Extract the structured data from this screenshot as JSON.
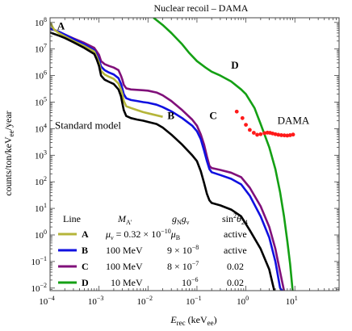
{
  "chart_data": {
    "type": "line",
    "title": "Nuclear recoil – DAMA",
    "xlabel_main": "E",
    "xlabel_sub": "rec",
    "xlabel_unit_pre": " (keV",
    "xlabel_unit_sub": "ee",
    "xlabel_unit_post": ")",
    "ylabel_pre": "counts/ton/keV",
    "ylabel_sub": "ee",
    "ylabel_post": "/year",
    "x_scale": "log",
    "y_scale": "log",
    "xlim": [
      0.0001,
      80
    ],
    "ylim": [
      0.008,
      150000000
    ],
    "grid": false,
    "frame": true,
    "x_ticks": [
      {
        "value": 0.0001,
        "base": "10",
        "exp": "−4"
      },
      {
        "value": 0.001,
        "base": "10",
        "exp": "−3"
      },
      {
        "value": 0.01,
        "base": "10",
        "exp": "−2"
      },
      {
        "value": 0.1,
        "base": "10",
        "exp": "−1"
      },
      {
        "value": 1,
        "base": "10",
        "exp": "0"
      },
      {
        "value": 10,
        "base": "10",
        "exp": "1"
      }
    ],
    "y_ticks": [
      {
        "value": 0.01,
        "base": "10",
        "exp": "−2"
      },
      {
        "value": 0.1,
        "base": "10",
        "exp": "−1"
      },
      {
        "value": 1,
        "base": "10",
        "exp": "0"
      },
      {
        "value": 10,
        "base": "10",
        "exp": "1"
      },
      {
        "value": 100,
        "base": "10",
        "exp": "2"
      },
      {
        "value": 1000,
        "base": "10",
        "exp": "3"
      },
      {
        "value": 10000,
        "base": "10",
        "exp": "4"
      },
      {
        "value": 100000,
        "base": "10",
        "exp": "5"
      },
      {
        "value": 1000000,
        "base": "10",
        "exp": "6"
      },
      {
        "value": 10000000,
        "base": "10",
        "exp": "7"
      },
      {
        "value": 100000000,
        "base": "10",
        "exp": "8"
      }
    ],
    "series": [
      {
        "name": "A",
        "color": "#b5b53a",
        "points": [
          [
            0.0001,
            100000000
          ],
          [
            0.00012,
            55000000
          ],
          [
            0.00015,
            40000000
          ],
          [
            0.0002,
            30000000
          ],
          [
            0.0003,
            20000000
          ],
          [
            0.0005,
            13000000
          ],
          [
            0.0008,
            8000000
          ],
          [
            0.0009,
            5000000
          ],
          [
            0.001,
            3000000
          ],
          [
            0.0011,
            1500000
          ],
          [
            0.0013,
            1100000
          ],
          [
            0.0016,
            900000
          ],
          [
            0.002,
            750000
          ],
          [
            0.0025,
            500000
          ],
          [
            0.0028,
            300000
          ],
          [
            0.003,
            200000
          ],
          [
            0.0032,
            110000
          ],
          [
            0.0036,
            70000
          ],
          [
            0.0045,
            60000
          ],
          [
            0.006,
            50000
          ],
          [
            0.008,
            42000
          ],
          [
            0.01,
            38000
          ],
          [
            0.02,
            28000
          ]
        ]
      },
      {
        "name": "B",
        "color": "#1010e0",
        "points": [
          [
            0.0001,
            60000000
          ],
          [
            0.00015,
            45000000
          ],
          [
            0.0002,
            35000000
          ],
          [
            0.0003,
            24000000
          ],
          [
            0.0005,
            15000000
          ],
          [
            0.0008,
            9000000
          ],
          [
            0.0009,
            6000000
          ],
          [
            0.001,
            4000000
          ],
          [
            0.0011,
            2200000
          ],
          [
            0.0013,
            1600000
          ],
          [
            0.0016,
            1300000
          ],
          [
            0.002,
            1100000
          ],
          [
            0.0025,
            800000
          ],
          [
            0.0028,
            500000
          ],
          [
            0.003,
            320000
          ],
          [
            0.0032,
            200000
          ],
          [
            0.0036,
            140000
          ],
          [
            0.0045,
            120000
          ],
          [
            0.006,
            110000
          ],
          [
            0.008,
            100000
          ],
          [
            0.01,
            95000
          ],
          [
            0.015,
            80000
          ],
          [
            0.02,
            65000
          ],
          [
            0.03,
            45000
          ],
          [
            0.05,
            25000
          ],
          [
            0.08,
            13000
          ],
          [
            0.1,
            8000
          ],
          [
            0.12,
            4000
          ],
          [
            0.14,
            1500
          ],
          [
            0.16,
            600
          ],
          [
            0.18,
            300
          ],
          [
            0.2,
            230
          ],
          [
            0.3,
            180
          ],
          [
            0.5,
            130
          ],
          [
            0.8,
            80
          ],
          [
            1.2,
            30
          ],
          [
            2,
            5
          ],
          [
            3,
            0.8
          ],
          [
            4,
            0.1
          ],
          [
            5,
            0.01
          ],
          [
            5.5,
            0.008
          ]
        ]
      },
      {
        "name": "C",
        "color": "#80107a",
        "points": [
          [
            0.0001,
            60000000
          ],
          [
            0.00015,
            45000000
          ],
          [
            0.0002,
            35000000
          ],
          [
            0.0003,
            25000000
          ],
          [
            0.0005,
            17000000
          ],
          [
            0.0008,
            11000000
          ],
          [
            0.0009,
            8000000
          ],
          [
            0.001,
            6000000
          ],
          [
            0.0011,
            3500000
          ],
          [
            0.0013,
            2700000
          ],
          [
            0.0016,
            2300000
          ],
          [
            0.002,
            2000000
          ],
          [
            0.0025,
            1600000
          ],
          [
            0.0028,
            1000000
          ],
          [
            0.003,
            700000
          ],
          [
            0.0032,
            450000
          ],
          [
            0.0036,
            330000
          ],
          [
            0.0045,
            300000
          ],
          [
            0.006,
            290000
          ],
          [
            0.008,
            280000
          ],
          [
            0.01,
            270000
          ],
          [
            0.015,
            230000
          ],
          [
            0.02,
            180000
          ],
          [
            0.03,
            110000
          ],
          [
            0.05,
            50000
          ],
          [
            0.08,
            22000
          ],
          [
            0.1,
            13000
          ],
          [
            0.12,
            6000
          ],
          [
            0.14,
            2500
          ],
          [
            0.16,
            900
          ],
          [
            0.18,
            400
          ],
          [
            0.2,
            330
          ],
          [
            0.3,
            280
          ],
          [
            0.5,
            220
          ],
          [
            0.8,
            150
          ],
          [
            1.2,
            60
          ],
          [
            2,
            12
          ],
          [
            3,
            2
          ],
          [
            4,
            0.3
          ],
          [
            5,
            0.04
          ],
          [
            6,
            0.008
          ]
        ]
      },
      {
        "name": "D",
        "color": "#14a014",
        "points": [
          [
            0.013,
            150000000
          ],
          [
            0.02,
            80000000
          ],
          [
            0.03,
            40000000
          ],
          [
            0.05,
            15000000
          ],
          [
            0.07,
            7000000
          ],
          [
            0.1,
            3500000
          ],
          [
            0.15,
            2000000
          ],
          [
            0.2,
            1400000
          ],
          [
            0.3,
            1000000
          ],
          [
            0.5,
            600000
          ],
          [
            0.8,
            300000
          ],
          [
            1.0,
            200000
          ],
          [
            1.5,
            60000
          ],
          [
            2,
            15000
          ],
          [
            3,
            2000
          ],
          [
            4,
            300
          ],
          [
            5,
            40
          ],
          [
            6,
            5
          ],
          [
            7,
            0.6
          ],
          [
            8,
            0.08
          ],
          [
            9,
            0.008
          ]
        ]
      },
      {
        "name": "Standard model",
        "color": "#000000",
        "points": [
          [
            0.0001,
            42000000
          ],
          [
            0.00015,
            32000000
          ],
          [
            0.0002,
            26000000
          ],
          [
            0.0003,
            18000000
          ],
          [
            0.0005,
            11000000
          ],
          [
            0.0008,
            6500000
          ],
          [
            0.0009,
            4000000
          ],
          [
            0.001,
            2300000
          ],
          [
            0.0011,
            1000000
          ],
          [
            0.0013,
            700000
          ],
          [
            0.0016,
            580000
          ],
          [
            0.002,
            480000
          ],
          [
            0.0025,
            300000
          ],
          [
            0.0028,
            170000
          ],
          [
            0.003,
            90000
          ],
          [
            0.0032,
            50000
          ],
          [
            0.0036,
            30000
          ],
          [
            0.0045,
            25000
          ],
          [
            0.006,
            22000
          ],
          [
            0.008,
            20000
          ],
          [
            0.01,
            18000
          ],
          [
            0.015,
            15000
          ],
          [
            0.02,
            11000
          ],
          [
            0.03,
            6000
          ],
          [
            0.05,
            2500
          ],
          [
            0.08,
            1000
          ],
          [
            0.1,
            600
          ],
          [
            0.12,
            250
          ],
          [
            0.14,
            90
          ],
          [
            0.16,
            35
          ],
          [
            0.18,
            20
          ],
          [
            0.2,
            16
          ],
          [
            0.3,
            13
          ],
          [
            0.5,
            9
          ],
          [
            0.8,
            5
          ],
          [
            1.2,
            1.5
          ],
          [
            2,
            0.3
          ],
          [
            3,
            0.05
          ],
          [
            3.5,
            0.015
          ],
          [
            3.8,
            0.008
          ]
        ]
      }
    ],
    "dama": {
      "name": "DAMA",
      "color": "#ff1a1a",
      "points": [
        [
          0.65,
          44000
        ],
        [
          0.85,
          25000
        ],
        [
          1.0,
          14000
        ],
        [
          1.2,
          9000
        ],
        [
          1.45,
          7000
        ],
        [
          1.7,
          5900
        ],
        [
          2.0,
          6200
        ],
        [
          2.4,
          6800
        ],
        [
          2.75,
          7100
        ],
        [
          3.1,
          7000
        ],
        [
          3.5,
          6600
        ],
        [
          4.0,
          6200
        ],
        [
          4.6,
          5900
        ],
        [
          5.3,
          5700
        ],
        [
          6.1,
          5600
        ],
        [
          7.0,
          5500
        ],
        [
          8.0,
          5700
        ],
        [
          9.2,
          6000
        ]
      ]
    },
    "curve_labels": [
      {
        "text": "A",
        "x": 0.00014,
        "y": 55000000
      },
      {
        "text": "B",
        "x": 0.025,
        "y": 23000
      },
      {
        "text": "C",
        "x": 0.18,
        "y": 23000
      },
      {
        "text": "D",
        "x": 0.5,
        "y": 1800000
      }
    ],
    "annotations": [
      {
        "text": "Standard model",
        "x": 0.0001,
        "y": 10000
      },
      {
        "text": "DAMA",
        "x": 3.5,
        "y": 15000
      }
    ],
    "legend": {
      "placement": "bottom-left",
      "headers": [
        "Line",
        "M",
        "g",
        "sin"
      ],
      "rows": [
        {
          "line": "A",
          "color": "#b5b53a",
          "mass": "",
          "coupling": "",
          "mixing": "active",
          "moment": "μ_ν = 0.32 × 10^−10 μ_B"
        },
        {
          "line": "B",
          "color": "#1010e0",
          "mass": "100 MeV",
          "coupling": "9 × 10^−8",
          "mixing": "active"
        },
        {
          "line": "C",
          "color": "#80107a",
          "mass": "100 MeV",
          "coupling": "8 × 10^−7",
          "mixing": "0.02"
        },
        {
          "line": "D",
          "color": "#14a014",
          "mass": "10 MeV",
          "coupling": "10^−6",
          "mixing": "0.02"
        }
      ],
      "header_mass_sub": "A′",
      "header_coupling_a_sub": "N",
      "header_coupling_b": "g",
      "header_coupling_b_sub": "ν",
      "header_mixing_sup": "2",
      "header_mixing_sym": "θ",
      "header_mixing_sub": "24",
      "row_a_mu": "μ",
      "row_a_mu_sub": "ν",
      "row_a_mid": " = 0.32 × 10",
      "row_a_exp": "−10",
      "row_a_muB": "μ",
      "row_a_muB_sub": "B",
      "row_b_coupling_base": "9 × 10",
      "row_b_coupling_exp": "−8",
      "row_c_coupling_base": "8 × 10",
      "row_c_coupling_exp": "−7",
      "row_d_coupling_base": "10",
      "row_d_coupling_exp": "−6"
    }
  }
}
